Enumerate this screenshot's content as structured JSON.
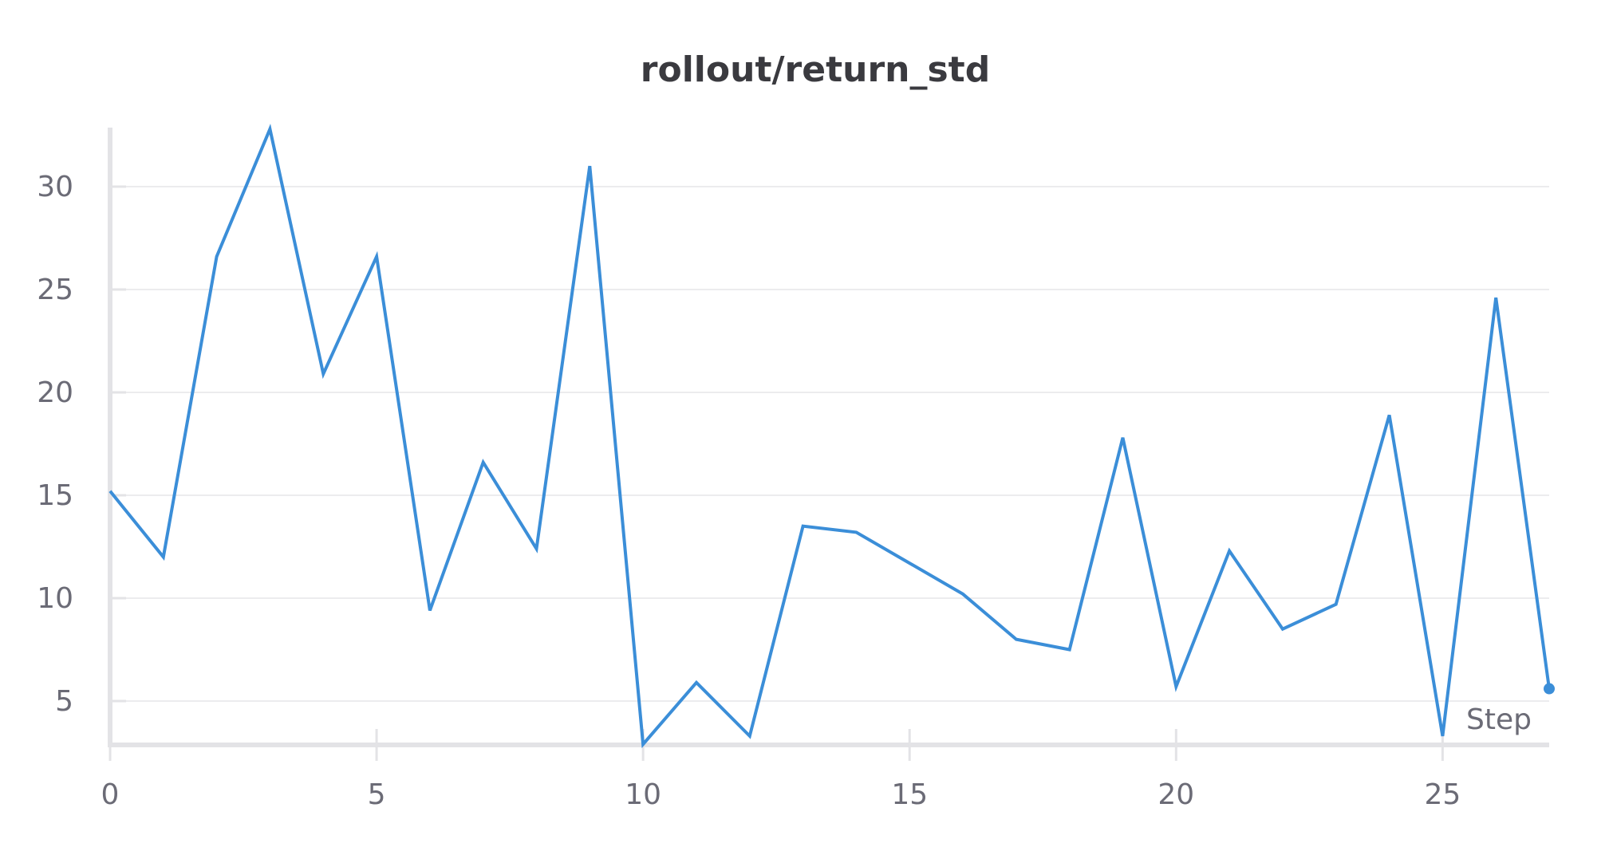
{
  "chart_data": {
    "type": "line",
    "title": "rollout/return_std",
    "xlabel": "Step",
    "ylabel": "",
    "xlim": [
      0,
      27
    ],
    "ylim": [
      3,
      33
    ],
    "x_ticks": [
      0,
      5,
      10,
      15,
      20,
      25
    ],
    "y_ticks": [
      5,
      10,
      15,
      20,
      25,
      30
    ],
    "grid": true,
    "series": [
      {
        "color": "#3b8ed8",
        "x": [
          0,
          1,
          2,
          3,
          4,
          5,
          6,
          7,
          8,
          9,
          10,
          11,
          12,
          13,
          14,
          15,
          16,
          17,
          18,
          19,
          20,
          21,
          22,
          23,
          24,
          25,
          26,
          27
        ],
        "y": [
          15.2,
          12.0,
          26.6,
          32.8,
          20.9,
          26.6,
          9.4,
          16.6,
          12.4,
          31.0,
          2.9,
          5.9,
          3.3,
          13.5,
          13.2,
          11.7,
          10.2,
          8.0,
          7.5,
          17.8,
          5.7,
          12.3,
          8.5,
          9.7,
          18.9,
          3.3,
          24.6,
          5.6
        ]
      }
    ]
  }
}
